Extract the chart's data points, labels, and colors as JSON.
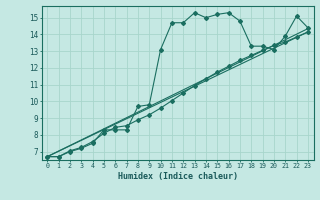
{
  "xlabel": "Humidex (Indice chaleur)",
  "background_color": "#c5e8e3",
  "grid_color": "#a8d5cc",
  "line_color": "#1a6e60",
  "xlim": [
    -0.5,
    23.5
  ],
  "ylim": [
    6.5,
    15.7
  ],
  "xticks": [
    0,
    1,
    2,
    3,
    4,
    5,
    6,
    7,
    8,
    9,
    10,
    11,
    12,
    13,
    14,
    15,
    16,
    17,
    18,
    19,
    20,
    21,
    22,
    23
  ],
  "yticks": [
    7,
    8,
    9,
    10,
    11,
    12,
    13,
    14,
    15
  ],
  "series1_x": [
    0,
    1,
    2,
    3,
    4,
    5,
    6,
    7,
    8,
    9,
    10,
    11,
    12,
    13,
    14,
    15,
    16,
    17,
    18,
    19,
    20,
    21,
    22,
    23
  ],
  "series1_y": [
    6.7,
    6.7,
    7.0,
    7.2,
    7.5,
    8.3,
    8.3,
    8.3,
    9.7,
    9.8,
    13.1,
    14.7,
    14.7,
    15.3,
    15.0,
    15.2,
    15.3,
    14.8,
    13.3,
    13.3,
    13.1,
    13.9,
    15.1,
    14.4
  ],
  "series2_x": [
    0,
    1,
    2,
    3,
    4,
    5,
    6,
    7,
    8,
    9,
    10,
    11,
    12,
    13,
    14,
    15,
    16,
    17,
    18,
    19,
    20,
    21,
    22,
    23
  ],
  "series2_y": [
    6.7,
    6.7,
    7.05,
    7.25,
    7.6,
    8.1,
    8.45,
    8.55,
    8.9,
    9.2,
    9.6,
    10.05,
    10.5,
    10.95,
    11.35,
    11.75,
    12.1,
    12.45,
    12.75,
    13.05,
    13.35,
    13.55,
    13.85,
    14.15
  ],
  "line1_x": [
    0,
    23
  ],
  "line1_y": [
    6.7,
    14.35
  ],
  "line2_x": [
    0,
    23
  ],
  "line2_y": [
    6.7,
    14.15
  ]
}
